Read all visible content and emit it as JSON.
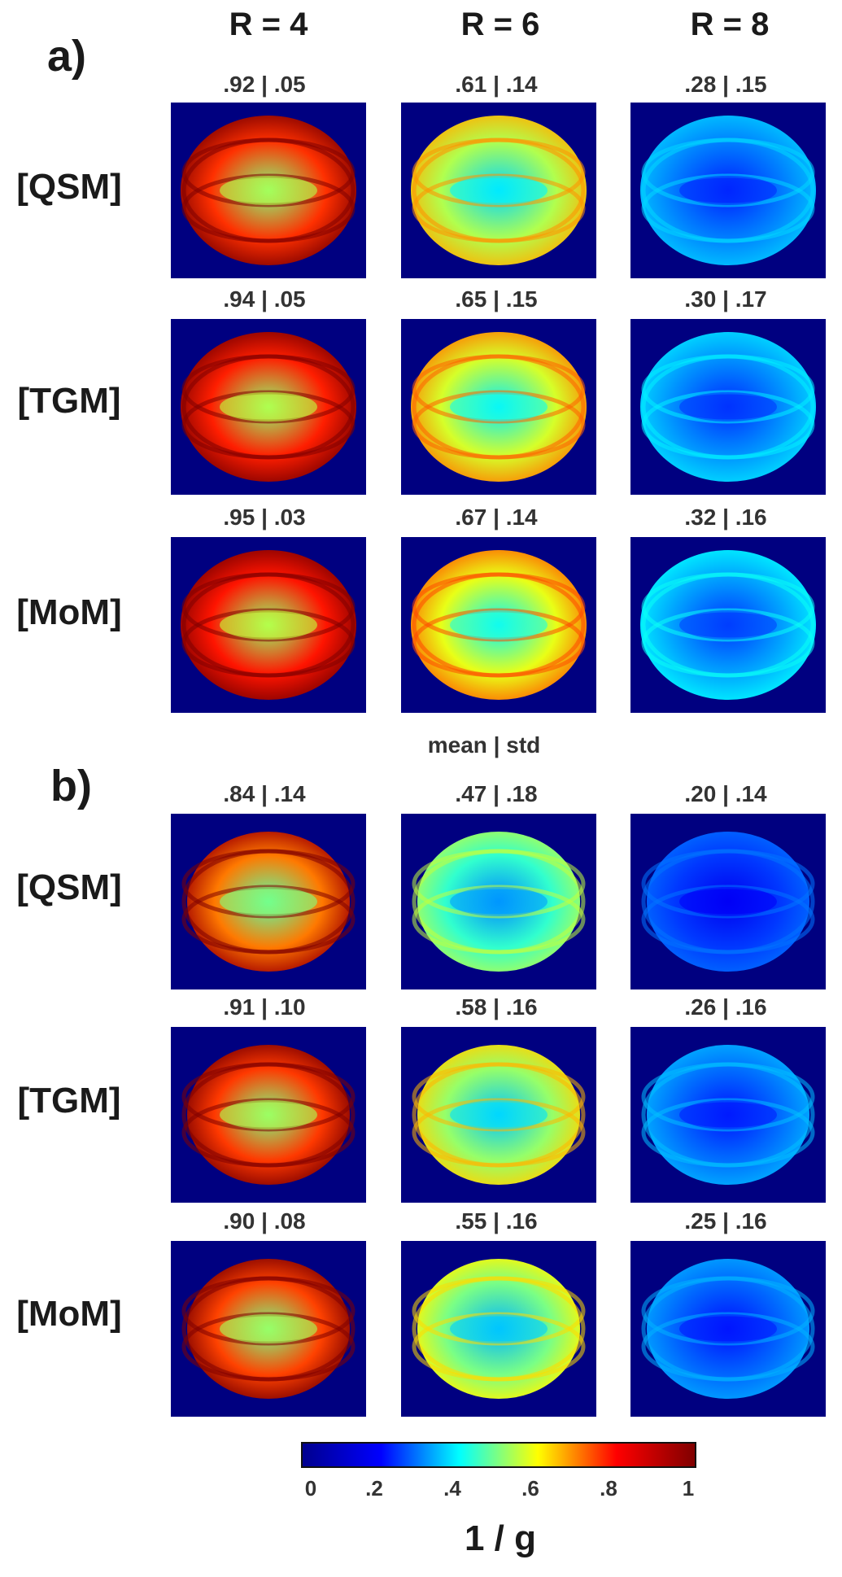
{
  "columns": [
    "R = 4",
    "R = 6",
    "R = 8"
  ],
  "panels": [
    {
      "label": "a)",
      "rows": [
        {
          "label": "[QSM]",
          "stats": [
            ".92 | .05",
            ".61 | .14",
            ".28 | .15"
          ],
          "fill": [
            0.92,
            0.61,
            0.28
          ]
        },
        {
          "label": "[TGM]",
          "stats": [
            ".94 | .05",
            ".65 | .15",
            ".30 | .17"
          ],
          "fill": [
            0.94,
            0.65,
            0.3
          ]
        },
        {
          "label": "[MoM]",
          "stats": [
            ".95 | .03",
            ".67 | .14",
            ".32 | .16"
          ],
          "fill": [
            0.95,
            0.67,
            0.32
          ]
        }
      ]
    },
    {
      "label": "b)",
      "rows": [
        {
          "label": "[QSM]",
          "stats": [
            ".84 | .14",
            ".47 | .18",
            ".20 | .14"
          ],
          "fill": [
            0.84,
            0.47,
            0.2
          ]
        },
        {
          "label": "[TGM]",
          "stats": [
            ".91 | .10",
            ".58 | .16",
            ".26 | .16"
          ],
          "fill": [
            0.91,
            0.58,
            0.26
          ]
        },
        {
          "label": "[MoM]",
          "stats": [
            ".90 | .08",
            ".55 | .16",
            ".25 | .16"
          ],
          "fill": [
            0.9,
            0.55,
            0.25
          ]
        }
      ]
    }
  ],
  "stat_caption": "mean | std",
  "colorbar": {
    "ticks": [
      "0",
      ".2",
      ".4",
      ".6",
      ".8",
      "1"
    ],
    "title": "1 / g",
    "colors": [
      "#00008f",
      "#0000ff",
      "#00ffff",
      "#ffff00",
      "#ff0000",
      "#800000"
    ]
  }
}
